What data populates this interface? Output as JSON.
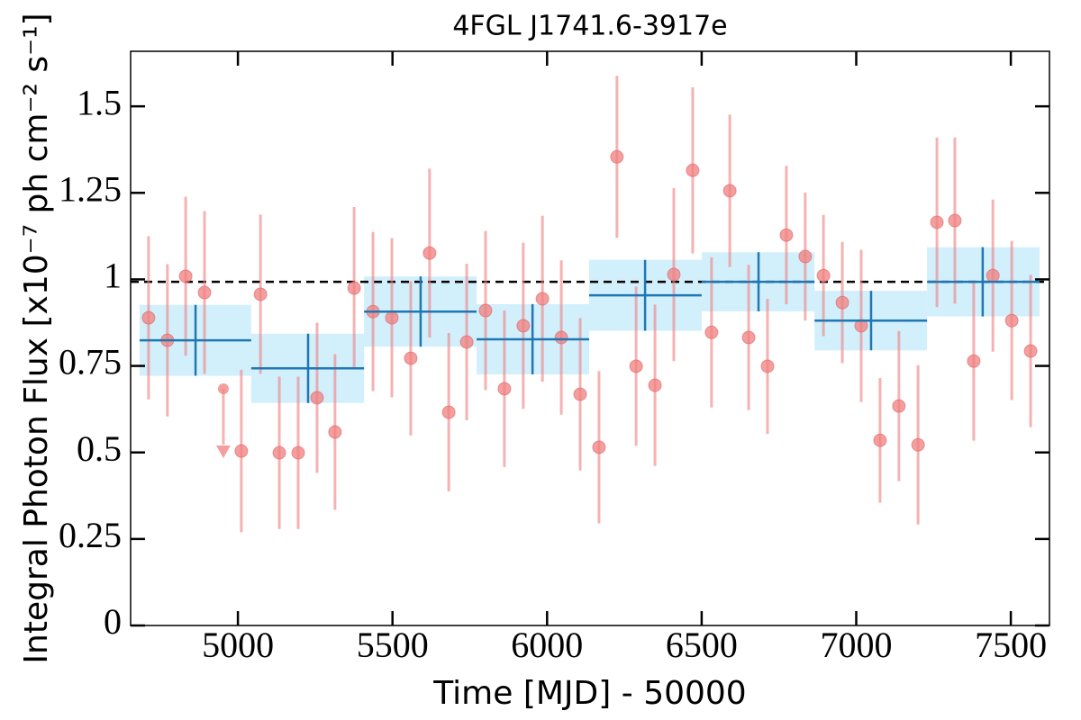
{
  "chart_data": {
    "type": "scatter",
    "title": "4FGL J1741.6-3917e",
    "x_label": "Time [MJD] - 50000",
    "y_label": "Integral Photon Flux [x10⁻⁷ ph cm⁻² s⁻¹]",
    "xlim": [
      4653,
      7625
    ],
    "ylim": [
      0,
      1.659
    ],
    "xticks": [
      5000,
      5500,
      6000,
      6500,
      7000,
      7500
    ],
    "yticks": [
      0,
      0.25,
      0.5,
      0.75,
      1,
      1.25,
      1.5
    ],
    "points": {
      "color": "#f07f7f",
      "x": [
        4711,
        4772,
        4831,
        4892,
        5011,
        5073,
        5134,
        5195,
        5256,
        5314,
        5376,
        5437,
        5498,
        5559,
        5620,
        5682,
        5740,
        5801,
        5862,
        5923,
        5985,
        6046,
        6107,
        6168,
        6226,
        6288,
        6349,
        6410,
        6471,
        6532,
        6591,
        6652,
        6713,
        6774,
        6835,
        6894,
        6955,
        7016,
        7077,
        7138,
        7200,
        7261,
        7319,
        7380,
        7442,
        7503,
        7564
      ],
      "values": [
        0.889,
        0.824,
        1.009,
        0.962,
        0.504,
        0.957,
        0.499,
        0.499,
        0.658,
        0.559,
        0.975,
        0.907,
        0.889,
        0.772,
        1.076,
        0.616,
        0.819,
        0.91,
        0.684,
        0.866,
        0.944,
        0.832,
        0.668,
        0.515,
        1.354,
        0.749,
        0.694,
        1.014,
        1.315,
        0.847,
        1.256,
        0.832,
        0.749,
        1.128,
        1.066,
        1.011,
        0.933,
        0.866,
        0.535,
        0.634,
        0.522,
        1.165,
        1.17,
        0.764,
        1.011,
        0.881,
        0.793
      ],
      "errors": [
        0.236,
        0.22,
        0.23,
        0.235,
        0.235,
        0.23,
        0.22,
        0.22,
        0.217,
        0.225,
        0.234,
        0.23,
        0.23,
        0.223,
        0.244,
        0.229,
        0.226,
        0.23,
        0.226,
        0.24,
        0.24,
        0.223,
        0.22,
        0.22,
        0.234,
        0.23,
        0.233,
        0.25,
        0.24,
        0.217,
        0.22,
        0.21,
        0.195,
        0.2,
        0.185,
        0.175,
        0.175,
        0.22,
        0.18,
        0.217,
        0.23,
        0.245,
        0.24,
        0.23,
        0.22,
        0.23,
        0.22
      ]
    },
    "upper_limits": {
      "color": "#f07f7f",
      "x": [
        4953
      ],
      "values": [
        0.684
      ]
    },
    "bins": {
      "color": "#1f77b4",
      "fill": "#d2effc",
      "x_start": [
        4682,
        5043,
        5408,
        5772,
        6136,
        6500,
        6865,
        7229
      ],
      "x_end": [
        5043,
        5408,
        5772,
        6136,
        6500,
        6865,
        7229,
        7593
      ],
      "x_center": [
        4863,
        5227,
        5591,
        5953,
        6317,
        6684,
        7048,
        7409
      ],
      "values": [
        0.824,
        0.743,
        0.907,
        0.827,
        0.954,
        0.993,
        0.881,
        0.993
      ],
      "errors": [
        0.1025,
        0.1,
        0.1015,
        0.1015,
        0.1025,
        0.0855,
        0.086,
        0.1
      ]
    },
    "mean_flux": 0.993
  }
}
